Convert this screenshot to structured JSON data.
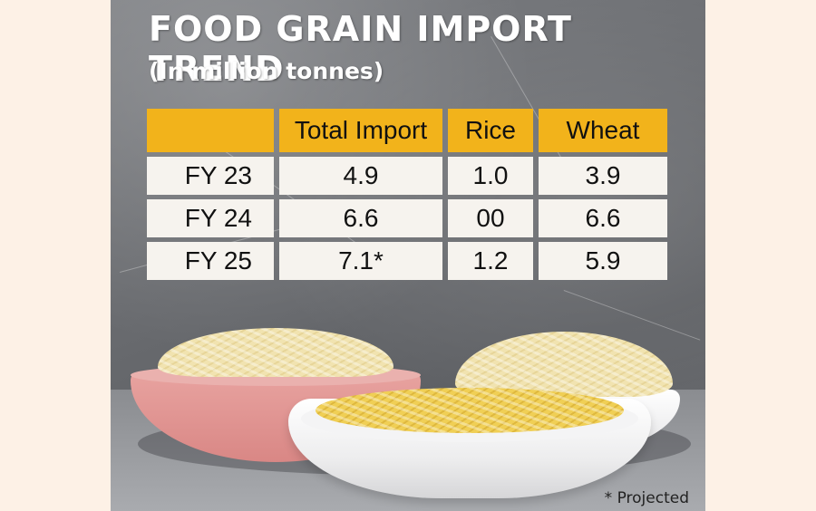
{
  "title": "FOOD GRAIN IMPORT TREND",
  "subtitle": "(In million tonnes)",
  "table": {
    "columns": [
      "Total Import",
      "Rice",
      "Wheat"
    ],
    "rows": [
      {
        "label": "FY 23",
        "total": "4.9",
        "rice": "1.0",
        "wheat": "3.9"
      },
      {
        "label": "FY 24",
        "total": "6.6",
        "rice": "00",
        "wheat": "6.6"
      },
      {
        "label": "FY 25",
        "total": "7.1*",
        "rice": "1.2",
        "wheat": "5.9"
      }
    ]
  },
  "footnote": "* Projected",
  "colors": {
    "header_fill": "#f2b31b",
    "cell_fill": "#f6f3ee",
    "title_text": "#ffffff"
  }
}
